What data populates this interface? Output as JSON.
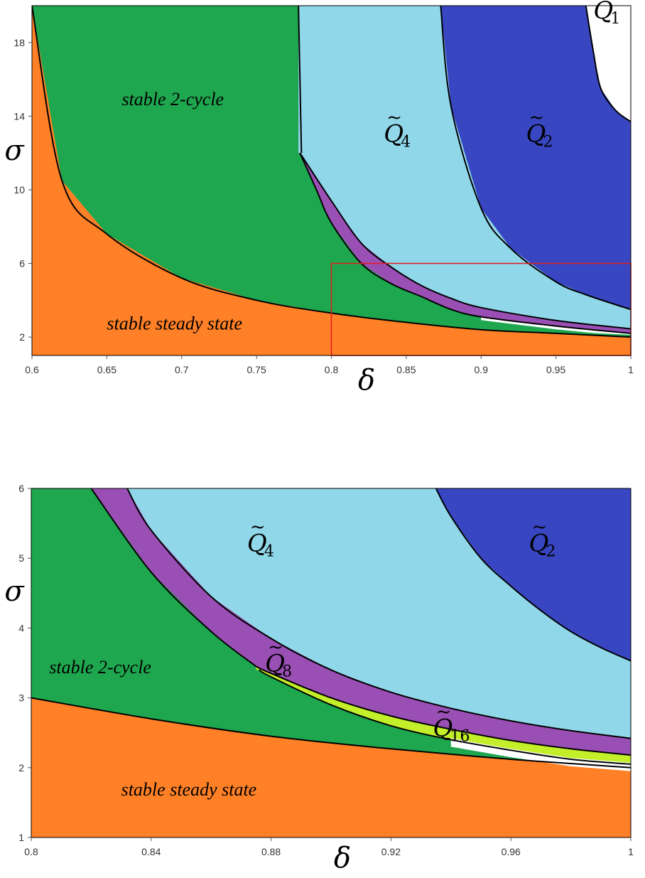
{
  "colors": {
    "steady": "#ff8026",
    "cycle2": "#1fa74f",
    "q4": "#90d7ea",
    "q2": "#3846c2",
    "q8": "#9a4fb5",
    "q16": "#c3ee2a",
    "white": "#ffffff",
    "zoom_box": "#e41a1c"
  },
  "chart_data": [
    {
      "type": "area",
      "id": "top",
      "xlabel": "δ",
      "ylabel": "σ",
      "xlim": [
        0.6,
        1.0
      ],
      "ylim": [
        1,
        20
      ],
      "xticks": [
        0.6,
        0.65,
        0.7,
        0.75,
        0.8,
        0.85,
        0.9,
        0.95,
        1
      ],
      "xtick_labels": [
        "0.6",
        "0.65",
        "0.7",
        "0.75",
        "0.8",
        "0.85",
        "0.9",
        "0.95",
        "1"
      ],
      "yticks": [
        2,
        6,
        10,
        14,
        18
      ],
      "ytick_labels": [
        "2",
        "6",
        "10",
        "14",
        "18"
      ],
      "regions": [
        {
          "name": "stable steady state",
          "color_key": "steady"
        },
        {
          "name": "stable 2-cycle",
          "color_key": "cycle2"
        },
        {
          "name": "Q8",
          "color_key": "q8"
        },
        {
          "name": "Q4",
          "color_key": "q4"
        },
        {
          "name": "Q2",
          "color_key": "q2"
        },
        {
          "name": "Q1",
          "color_key": "white"
        }
      ],
      "boundaries": [
        {
          "name": "steady/2-cycle",
          "x": [
            0.6,
            0.62,
            0.65,
            0.7,
            0.75,
            0.8,
            0.85,
            0.9,
            0.95,
            1.0
          ],
          "y": [
            20,
            10.5,
            7.6,
            5.2,
            4.0,
            3.3,
            2.8,
            2.4,
            2.2,
            2.0
          ]
        },
        {
          "name": "2-cycle/Q8",
          "x": [
            0.779,
            0.79,
            0.8,
            0.82,
            0.84,
            0.86,
            0.88,
            0.9,
            0.95,
            1.0
          ],
          "y": [
            12.0,
            10.0,
            8.2,
            6.0,
            4.9,
            4.2,
            3.5,
            3.1,
            2.6,
            2.2
          ]
        },
        {
          "name": "Q8/Q4",
          "x": [
            0.779,
            0.8,
            0.82,
            0.84,
            0.86,
            0.88,
            0.9,
            0.95,
            1.0
          ],
          "y": [
            12.0,
            9.4,
            7.1,
            5.8,
            4.8,
            4.1,
            3.6,
            2.9,
            2.45
          ]
        },
        {
          "name": "Q4/upper",
          "x": [
            0.778,
            0.78
          ],
          "y": [
            20,
            12.0
          ]
        },
        {
          "name": "Q4/Q2",
          "x": [
            0.873,
            0.88,
            0.9,
            0.92,
            0.95,
            0.97,
            1.0
          ],
          "y": [
            20,
            14.5,
            9.0,
            6.8,
            5.0,
            4.3,
            3.5
          ]
        },
        {
          "name": "Q2/Q1",
          "x": [
            0.97,
            0.975,
            0.98,
            0.99,
            1.0
          ],
          "y": [
            20,
            17.5,
            15.5,
            14.3,
            13.7
          ]
        }
      ],
      "labels": [
        {
          "text": "stable 2-cycle",
          "x": 0.66,
          "y": 14.6
        },
        {
          "text": "stable steady state",
          "x": 0.65,
          "y": 2.4
        },
        {
          "q": "Q",
          "sub": "4",
          "x": 0.835,
          "y": 12.6
        },
        {
          "q": "Q",
          "sub": "2",
          "x": 0.93,
          "y": 12.6
        },
        {
          "q": "Q",
          "sub": "1",
          "x": 0.975,
          "y": 19.3
        }
      ],
      "zoom_box": {
        "x": [
          0.8,
          1.0
        ],
        "y": [
          1,
          6
        ]
      }
    },
    {
      "type": "area",
      "id": "bottom",
      "xlabel": "δ",
      "ylabel": "σ",
      "xlim": [
        0.8,
        1.0
      ],
      "ylim": [
        1,
        6
      ],
      "xticks": [
        0.8,
        0.84,
        0.88,
        0.92,
        0.96,
        1
      ],
      "xtick_labels": [
        "0.8",
        "0.84",
        "0.88",
        "0.92",
        "0.96",
        "1"
      ],
      "yticks": [
        1,
        2,
        3,
        4,
        5,
        6
      ],
      "ytick_labels": [
        "1",
        "2",
        "3",
        "4",
        "5",
        "6"
      ],
      "regions": [
        {
          "name": "stable steady state",
          "color_key": "steady"
        },
        {
          "name": "stable 2-cycle",
          "color_key": "cycle2"
        },
        {
          "name": "Q16",
          "color_key": "q16"
        },
        {
          "name": "Q8",
          "color_key": "q8"
        },
        {
          "name": "Q4",
          "color_key": "q4"
        },
        {
          "name": "Q2",
          "color_key": "q2"
        }
      ],
      "boundaries": [
        {
          "name": "steady/2-cycle",
          "x": [
            0.8,
            0.84,
            0.88,
            0.92,
            0.96,
            1.0
          ],
          "y": [
            3.0,
            2.7,
            2.45,
            2.27,
            2.12,
            2.0
          ]
        },
        {
          "name": "2-cycle/chaos",
          "x": [
            0.876,
            0.88,
            0.9,
            0.92,
            0.94,
            0.96,
            0.98,
            1.0
          ],
          "y": [
            3.4,
            3.3,
            2.9,
            2.6,
            2.4,
            2.25,
            2.12,
            2.05
          ]
        },
        {
          "name": "Q16/Q8",
          "x": [
            0.875,
            0.88,
            0.9,
            0.92,
            0.94,
            0.96,
            0.98,
            1.0
          ],
          "y": [
            3.45,
            3.35,
            3.0,
            2.74,
            2.55,
            2.39,
            2.27,
            2.18
          ]
        },
        {
          "name": "2-cycle/Q8",
          "x": [
            0.82,
            0.84,
            0.86,
            0.875
          ],
          "y": [
            6.0,
            4.8,
            3.95,
            3.45
          ]
        },
        {
          "name": "Q8/Q4",
          "x": [
            0.832,
            0.84,
            0.86,
            0.88,
            0.9,
            0.92,
            0.94,
            0.96,
            0.98,
            1.0
          ],
          "y": [
            6.0,
            5.4,
            4.45,
            3.85,
            3.4,
            3.08,
            2.85,
            2.67,
            2.53,
            2.42
          ]
        },
        {
          "name": "Q4/Q2",
          "x": [
            0.935,
            0.94,
            0.95,
            0.96,
            0.97,
            0.98,
            0.99,
            1.0
          ],
          "y": [
            6.0,
            5.6,
            5.0,
            4.6,
            4.25,
            3.95,
            3.72,
            3.53
          ]
        }
      ],
      "labels": [
        {
          "text": "stable 2-cycle",
          "x": 0.806,
          "y": 3.35
        },
        {
          "text": "stable steady state",
          "x": 0.83,
          "y": 1.6
        },
        {
          "q": "Q",
          "sub": "4",
          "x": 0.872,
          "y": 5.1
        },
        {
          "q": "Q",
          "sub": "2",
          "x": 0.966,
          "y": 5.1
        },
        {
          "q": "Q",
          "sub": "8",
          "x": 0.878,
          "y": 3.38
        },
        {
          "q": "Q",
          "sub": "16",
          "x": 0.934,
          "y": 2.45
        }
      ]
    }
  ]
}
